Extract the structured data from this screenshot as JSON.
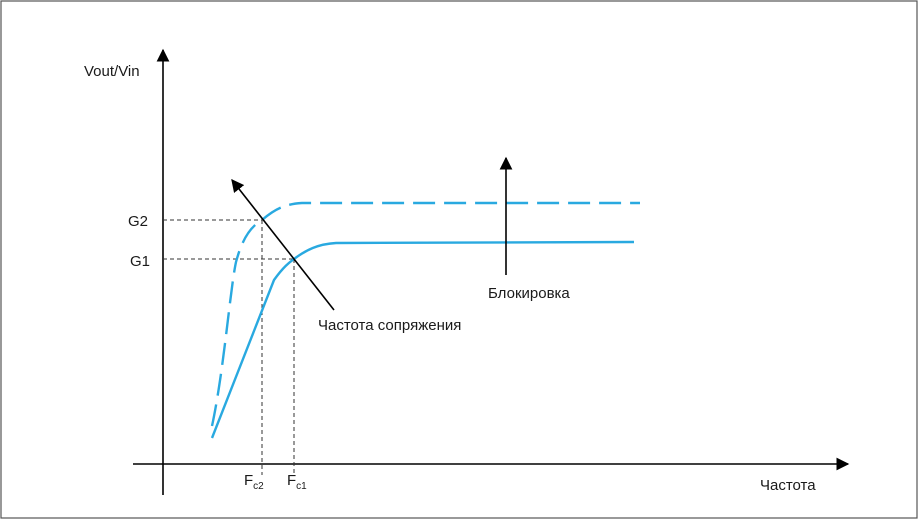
{
  "axes": {
    "y_label": "Vout/Vin",
    "x_label": "Частота"
  },
  "levels": {
    "g2": "G2",
    "g1": "G1"
  },
  "frequencies": {
    "fc2": {
      "main": "F",
      "sub": "c2"
    },
    "fc1": {
      "main": "F",
      "sub": "c1"
    }
  },
  "annotations": {
    "corner_frequency": "Частота сопряжения",
    "blocking": "Блокировка"
  },
  "curves": [
    {
      "name": "dashed-response",
      "style": "dashed",
      "color": "#29a9e0"
    },
    {
      "name": "solid-response",
      "style": "solid",
      "color": "#29a9e0"
    }
  ],
  "colors": {
    "curve": "#29a9e0",
    "axis": "#000000",
    "guides": "#333333",
    "border": "#555555"
  }
}
